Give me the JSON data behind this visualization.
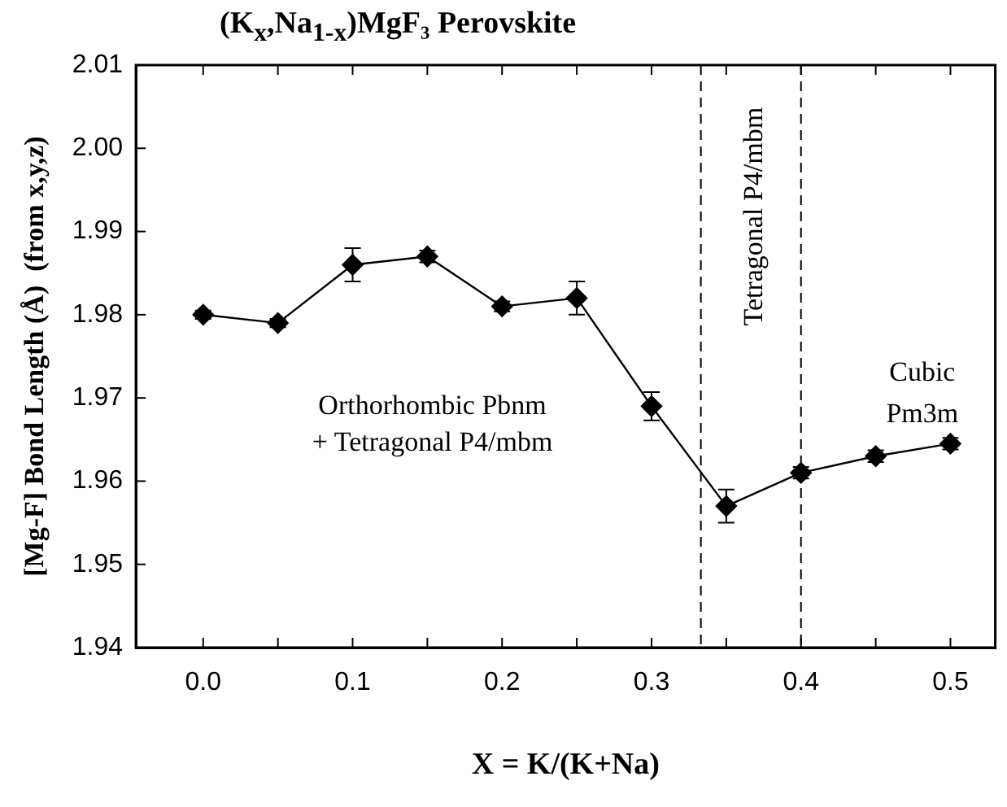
{
  "chart_data": {
    "type": "line",
    "title": "(K$_{x}$,Na$_{1-x}$)MgF₃  Perovskite",
    "xlabel": "X = K/(K+Na)",
    "ylabel": "[Mg-F] Bond Length (Å)  (from x,y,z)",
    "x": [
      0,
      0.05,
      0.1,
      0.15,
      0.2,
      0.25,
      0.3,
      0.35,
      0.4,
      0.45,
      0.5
    ],
    "series": [
      {
        "color": "#000000",
        "values": [
          1.98,
          1.979,
          1.986,
          1.987,
          1.981,
          1.982,
          1.969,
          1.957,
          1.961,
          1.963,
          1.9645
        ],
        "errors": [
          0.0005,
          0.0005,
          0.002,
          0.0007,
          0.0006,
          0.002,
          0.0017,
          0.002,
          0.0007,
          0.0007,
          0.0007
        ]
      }
    ],
    "xlim": [
      -0.045,
      0.53
    ],
    "xticks": [
      {
        "value": 0,
        "label": "0.0"
      },
      {
        "value": 0.05,
        "label": null
      },
      0.1,
      {
        "value": 0.15,
        "label": null
      },
      0.2,
      {
        "value": 0.25,
        "label": null
      },
      0.3,
      {
        "value": 0.35,
        "label": null
      },
      0.4,
      {
        "value": 0.45,
        "label": null
      },
      0.5
    ],
    "ylim": [
      1.94,
      2.01
    ],
    "yticks": [
      1.94,
      1.95,
      1.96,
      1.97,
      1.98,
      1.99,
      {
        "value": 2,
        "label": "2.00"
      },
      2.01
    ],
    "ref_lines": [
      {
        "axis": "x",
        "value": 0.333,
        "line_style": "dashed",
        "color": "#000000"
      },
      {
        "axis": "x",
        "value": 0.4,
        "line_style": "dashed",
        "color": "#000000"
      }
    ],
    "annotations": [
      "Orthorhombic Pbnm",
      "+ Tetragonal P4/mbm",
      "Tetragonal P4/mbm",
      "Cubic",
      "Pm3m"
    ],
    "marker": "diamond",
    "line_style": "solid",
    "grid": false,
    "legend": false
  }
}
